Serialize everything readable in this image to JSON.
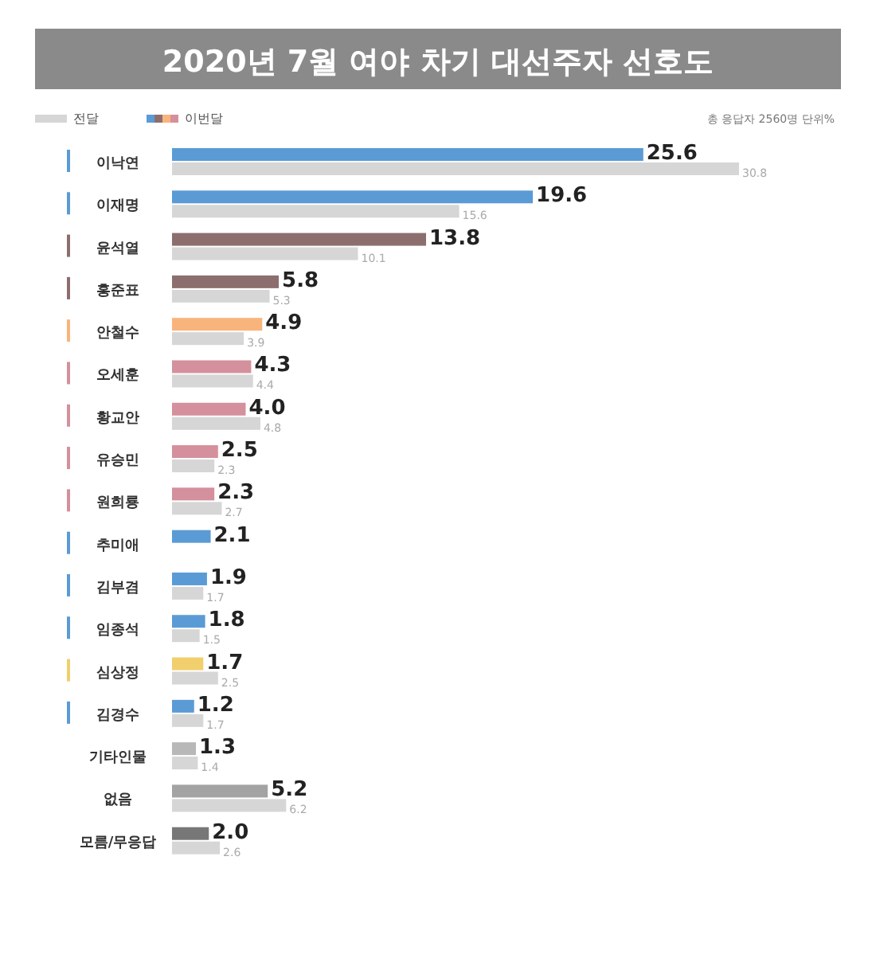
{
  "chart_data": {
    "type": "bar",
    "orientation": "horizontal",
    "title": "2020년 7월 여야 차기 대선주자 선호도",
    "annotations": [
      "총 응답자 2560명 단위%"
    ],
    "categories": [
      "이낙연",
      "이재명",
      "윤석열",
      "홍준표",
      "안철수",
      "오세훈",
      "황교안",
      "유승민",
      "원희룡",
      "추미애",
      "김부겸",
      "임종석",
      "심상정",
      "김경수",
      "기타인물",
      "없음",
      "모름/무응답"
    ],
    "series": [
      {
        "name": "이번달",
        "colors": [
          "#5b9bd5",
          "#5b9bd5",
          "#8d6e6e",
          "#8d6e6e",
          "#f9b47c",
          "#d4909c",
          "#d4909c",
          "#d4909c",
          "#d4909c",
          "#5b9bd5",
          "#5b9bd5",
          "#5b9bd5",
          "#f0cf6c",
          "#5b9bd5",
          "#b8b8b8",
          "#a3a3a3",
          "#777777"
        ],
        "values": [
          25.6,
          19.6,
          13.8,
          5.8,
          4.9,
          4.3,
          4.0,
          2.5,
          2.3,
          2.1,
          1.9,
          1.8,
          1.7,
          1.2,
          1.3,
          5.2,
          2.0
        ],
        "value_labels": [
          "25.6",
          "19.6",
          "13.8",
          "5.8",
          "4.9",
          "4.3",
          "4.0",
          "2.5",
          "2.3",
          "2.1",
          "1.9",
          "1.8",
          "1.7",
          "1.2",
          "1.3",
          "5.2",
          "2.0"
        ]
      },
      {
        "name": "전달",
        "color": "#d6d6d6",
        "values": [
          30.8,
          15.6,
          10.1,
          5.3,
          3.9,
          4.4,
          4.8,
          2.3,
          2.7,
          null,
          1.7,
          1.5,
          2.5,
          1.7,
          1.4,
          6.2,
          2.6
        ],
        "value_labels": [
          "30.8",
          "15.6",
          "10.1",
          "5.3",
          "3.9",
          "4.4",
          "4.8",
          "2.3",
          "2.7",
          null,
          "1.7",
          "1.5",
          "2.5",
          "1.7",
          "1.4",
          "6.2",
          "2.6"
        ]
      }
    ],
    "legend": "top left"
  }
}
